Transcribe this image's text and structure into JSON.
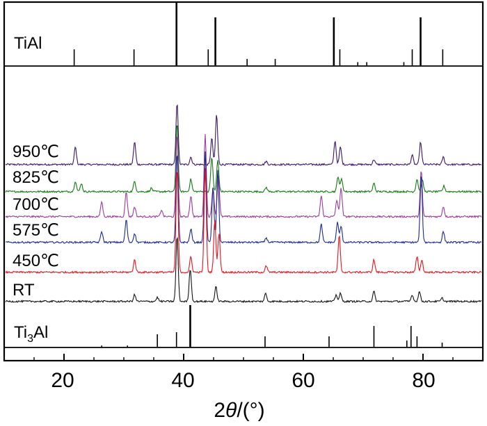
{
  "chart_data": {
    "type": "line",
    "title": "",
    "xlabel": "2θ/(°)",
    "xlabel_parts": {
      "var": "θ",
      "prefix": "2",
      "suffix": "/(°)"
    },
    "ylabel": "",
    "xlim": [
      10,
      90
    ],
    "x_ticks": [
      20,
      40,
      60,
      80
    ],
    "x_tick_labels": [
      "20",
      "40",
      "60",
      "80"
    ],
    "grid": false,
    "panels": {
      "top_label": "TiAl",
      "bottom_label": {
        "base": "Ti",
        "sub": "3",
        "rest": "Al"
      }
    },
    "reference_tial": {
      "name": "TiAl",
      "peaks": [
        {
          "x": 21.7,
          "h": 0.25
        },
        {
          "x": 31.7,
          "h": 0.25
        },
        {
          "x": 38.8,
          "h": 1.0
        },
        {
          "x": 44.1,
          "h": 0.25
        },
        {
          "x": 45.3,
          "h": 0.75
        },
        {
          "x": 50.6,
          "h": 0.1
        },
        {
          "x": 55.3,
          "h": 0.1
        },
        {
          "x": 65.1,
          "h": 0.75
        },
        {
          "x": 66.1,
          "h": 0.25
        },
        {
          "x": 69.1,
          "h": 0.05
        },
        {
          "x": 70.6,
          "h": 0.05
        },
        {
          "x": 76.8,
          "h": 0.05
        },
        {
          "x": 78.2,
          "h": 0.25
        },
        {
          "x": 79.6,
          "h": 0.75
        },
        {
          "x": 83.3,
          "h": 0.25
        }
      ]
    },
    "reference_ti3al": {
      "name": "Ti3Al",
      "peaks": [
        {
          "x": 26.3,
          "h": 0.03
        },
        {
          "x": 30.6,
          "h": 0.03
        },
        {
          "x": 35.6,
          "h": 0.3
        },
        {
          "x": 38.8,
          "h": 0.35
        },
        {
          "x": 41.1,
          "h": 1.0
        },
        {
          "x": 53.6,
          "h": 0.25
        },
        {
          "x": 64.3,
          "h": 0.25
        },
        {
          "x": 71.8,
          "h": 0.5
        },
        {
          "x": 77.3,
          "h": 0.15
        },
        {
          "x": 78.0,
          "h": 0.5
        },
        {
          "x": 79.0,
          "h": 0.25
        },
        {
          "x": 83.2,
          "h": 0.1
        }
      ]
    },
    "series": [
      {
        "name": "950℃",
        "color": "#3a1466",
        "peaks": [
          {
            "x": 21.9,
            "h": 0.28
          },
          {
            "x": 31.8,
            "h": 0.36
          },
          {
            "x": 38.9,
            "h": 1.0
          },
          {
            "x": 41.2,
            "h": 0.12
          },
          {
            "x": 44.7,
            "h": 0.42
          },
          {
            "x": 45.5,
            "h": 0.8
          },
          {
            "x": 53.8,
            "h": 0.05
          },
          {
            "x": 65.3,
            "h": 0.38
          },
          {
            "x": 66.2,
            "h": 0.28
          },
          {
            "x": 71.8,
            "h": 0.08
          },
          {
            "x": 78.2,
            "h": 0.15
          },
          {
            "x": 79.6,
            "h": 0.36
          },
          {
            "x": 83.4,
            "h": 0.12
          }
        ]
      },
      {
        "name": "825℃",
        "color": "#137a13",
        "peaks": [
          {
            "x": 21.9,
            "h": 0.15
          },
          {
            "x": 22.9,
            "h": 0.12
          },
          {
            "x": 31.8,
            "h": 0.15
          },
          {
            "x": 34.6,
            "h": 0.05
          },
          {
            "x": 38.9,
            "h": 1.0
          },
          {
            "x": 41.2,
            "h": 0.18
          },
          {
            "x": 44.7,
            "h": 0.5
          },
          {
            "x": 45.7,
            "h": 0.45
          },
          {
            "x": 53.8,
            "h": 0.06
          },
          {
            "x": 65.8,
            "h": 0.22
          },
          {
            "x": 66.4,
            "h": 0.18
          },
          {
            "x": 71.8,
            "h": 0.12
          },
          {
            "x": 79.0,
            "h": 0.18
          },
          {
            "x": 79.9,
            "h": 0.16
          },
          {
            "x": 83.5,
            "h": 0.08
          }
        ]
      },
      {
        "name": "700℃",
        "color": "#9c3a9c",
        "peaks": [
          {
            "x": 26.3,
            "h": 0.18
          },
          {
            "x": 30.4,
            "h": 0.3
          },
          {
            "x": 31.8,
            "h": 0.12
          },
          {
            "x": 36.3,
            "h": 0.08
          },
          {
            "x": 38.9,
            "h": 1.0
          },
          {
            "x": 41.2,
            "h": 0.25
          },
          {
            "x": 43.6,
            "h": 1.0
          },
          {
            "x": 44.9,
            "h": 0.35
          },
          {
            "x": 45.8,
            "h": 0.5
          },
          {
            "x": 63.0,
            "h": 0.25
          },
          {
            "x": 65.6,
            "h": 0.2
          },
          {
            "x": 66.3,
            "h": 0.35
          },
          {
            "x": 79.7,
            "h": 0.55
          },
          {
            "x": 83.4,
            "h": 0.12
          }
        ]
      },
      {
        "name": "575℃",
        "color": "#1a2a8c",
        "peaks": [
          {
            "x": 26.3,
            "h": 0.12
          },
          {
            "x": 30.4,
            "h": 0.25
          },
          {
            "x": 31.8,
            "h": 0.1
          },
          {
            "x": 38.9,
            "h": 1.0
          },
          {
            "x": 41.2,
            "h": 0.15
          },
          {
            "x": 43.6,
            "h": 1.0
          },
          {
            "x": 44.9,
            "h": 0.6
          },
          {
            "x": 45.7,
            "h": 0.8
          },
          {
            "x": 53.8,
            "h": 0.05
          },
          {
            "x": 63.0,
            "h": 0.2
          },
          {
            "x": 65.7,
            "h": 0.22
          },
          {
            "x": 66.3,
            "h": 0.18
          },
          {
            "x": 79.7,
            "h": 0.75
          },
          {
            "x": 83.4,
            "h": 0.12
          }
        ]
      },
      {
        "name": "450℃",
        "color": "#e8141c",
        "peaks": [
          {
            "x": 31.8,
            "h": 0.12
          },
          {
            "x": 38.9,
            "h": 1.0
          },
          {
            "x": 41.2,
            "h": 0.15
          },
          {
            "x": 43.6,
            "h": 1.0
          },
          {
            "x": 45.2,
            "h": 0.5
          },
          {
            "x": 45.9,
            "h": 0.38
          },
          {
            "x": 53.8,
            "h": 0.06
          },
          {
            "x": 66.0,
            "h": 0.35
          },
          {
            "x": 71.8,
            "h": 0.12
          },
          {
            "x": 79.0,
            "h": 0.15
          },
          {
            "x": 79.8,
            "h": 0.12
          }
        ]
      },
      {
        "name": "RT",
        "color": "#111111",
        "peaks": [
          {
            "x": 31.8,
            "h": 0.1
          },
          {
            "x": 35.6,
            "h": 0.06
          },
          {
            "x": 38.9,
            "h": 1.0
          },
          {
            "x": 41.1,
            "h": 0.5
          },
          {
            "x": 45.4,
            "h": 0.22
          },
          {
            "x": 53.7,
            "h": 0.12
          },
          {
            "x": 65.5,
            "h": 0.1
          },
          {
            "x": 66.2,
            "h": 0.12
          },
          {
            "x": 71.8,
            "h": 0.15
          },
          {
            "x": 78.2,
            "h": 0.1
          },
          {
            "x": 79.4,
            "h": 0.15
          },
          {
            "x": 83.2,
            "h": 0.05
          }
        ]
      }
    ]
  }
}
